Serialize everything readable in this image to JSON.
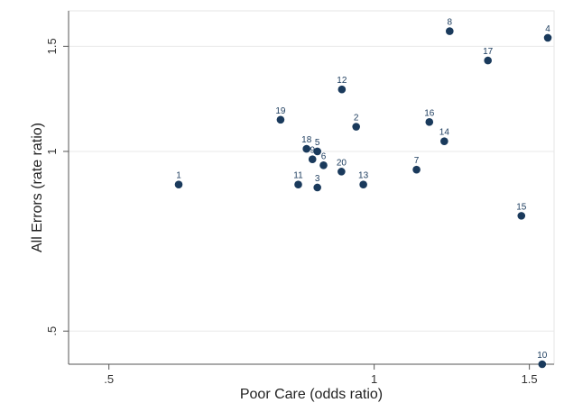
{
  "chart_data": {
    "type": "scatter",
    "xlabel": "Poor Care (odds ratio)",
    "ylabel": "All Errors (rate ratio)",
    "x_scale": "log",
    "y_scale": "log",
    "xlim": [
      0.45,
      1.6
    ],
    "ylim": [
      0.44,
      1.72
    ],
    "x_ticks": [
      {
        "value": 0.5,
        "label": ".5"
      },
      {
        "value": 1,
        "label": "1"
      },
      {
        "value": 1.5,
        "label": "1.5"
      }
    ],
    "y_ticks": [
      {
        "value": 0.5,
        "label": ".5"
      },
      {
        "value": 1,
        "label": "1"
      },
      {
        "value": 1.5,
        "label": "1.5"
      }
    ],
    "grid": "horizontal",
    "marker_color": "#1a3a5c",
    "points": [
      {
        "label": "1",
        "x": 0.6,
        "y": 0.88
      },
      {
        "label": "2",
        "x": 0.954,
        "y": 1.1
      },
      {
        "label": "3",
        "x": 0.862,
        "y": 0.87
      },
      {
        "label": "4",
        "x": 1.574,
        "y": 1.55
      },
      {
        "label": "5",
        "x": 0.862,
        "y": 1.0
      },
      {
        "label": "6",
        "x": 0.876,
        "y": 0.948
      },
      {
        "label": "7",
        "x": 1.117,
        "y": 0.932
      },
      {
        "label": "8",
        "x": 1.218,
        "y": 1.59
      },
      {
        "label": "9",
        "x": 0.851,
        "y": 0.97
      },
      {
        "label": "10",
        "x": 1.551,
        "y": 0.44
      },
      {
        "label": "11",
        "x": 0.82,
        "y": 0.88
      },
      {
        "label": "12",
        "x": 0.919,
        "y": 1.27
      },
      {
        "label": "13",
        "x": 0.972,
        "y": 0.88
      },
      {
        "label": "14",
        "x": 1.201,
        "y": 1.04
      },
      {
        "label": "15",
        "x": 1.469,
        "y": 0.78
      },
      {
        "label": "16",
        "x": 1.155,
        "y": 1.12
      },
      {
        "label": "17",
        "x": 1.346,
        "y": 1.42
      },
      {
        "label": "18",
        "x": 0.838,
        "y": 1.01
      },
      {
        "label": "19",
        "x": 0.783,
        "y": 1.13
      },
      {
        "label": "20",
        "x": 0.918,
        "y": 0.925
      }
    ]
  }
}
